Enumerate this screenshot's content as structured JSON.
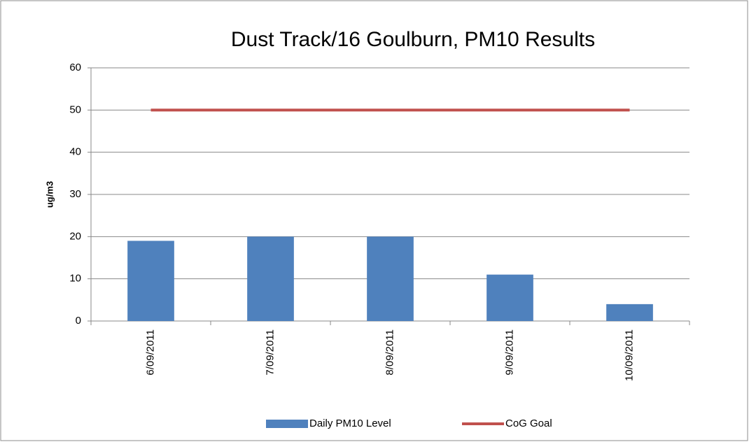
{
  "chart_data": {
    "type": "bar",
    "title": "Dust Track/16 Goulburn, PM10 Results",
    "y_label": "ug/m3",
    "categories": [
      "6/09/2011",
      "7/09/2011",
      "8/09/2011",
      "9/09/2011",
      "10/09/2011"
    ],
    "series": [
      {
        "name": "Daily PM10 Level",
        "type": "bar",
        "color": "#4f81bd",
        "values": [
          19,
          20,
          20,
          11,
          4
        ]
      },
      {
        "name": "CoG Goal",
        "type": "line",
        "color": "#c0504d",
        "values": [
          50,
          50,
          50,
          50,
          50
        ]
      }
    ],
    "ylim": [
      0,
      60
    ],
    "yticks": [
      0,
      10,
      20,
      30,
      40,
      50,
      60
    ],
    "grid": true,
    "legend": "bottom"
  }
}
